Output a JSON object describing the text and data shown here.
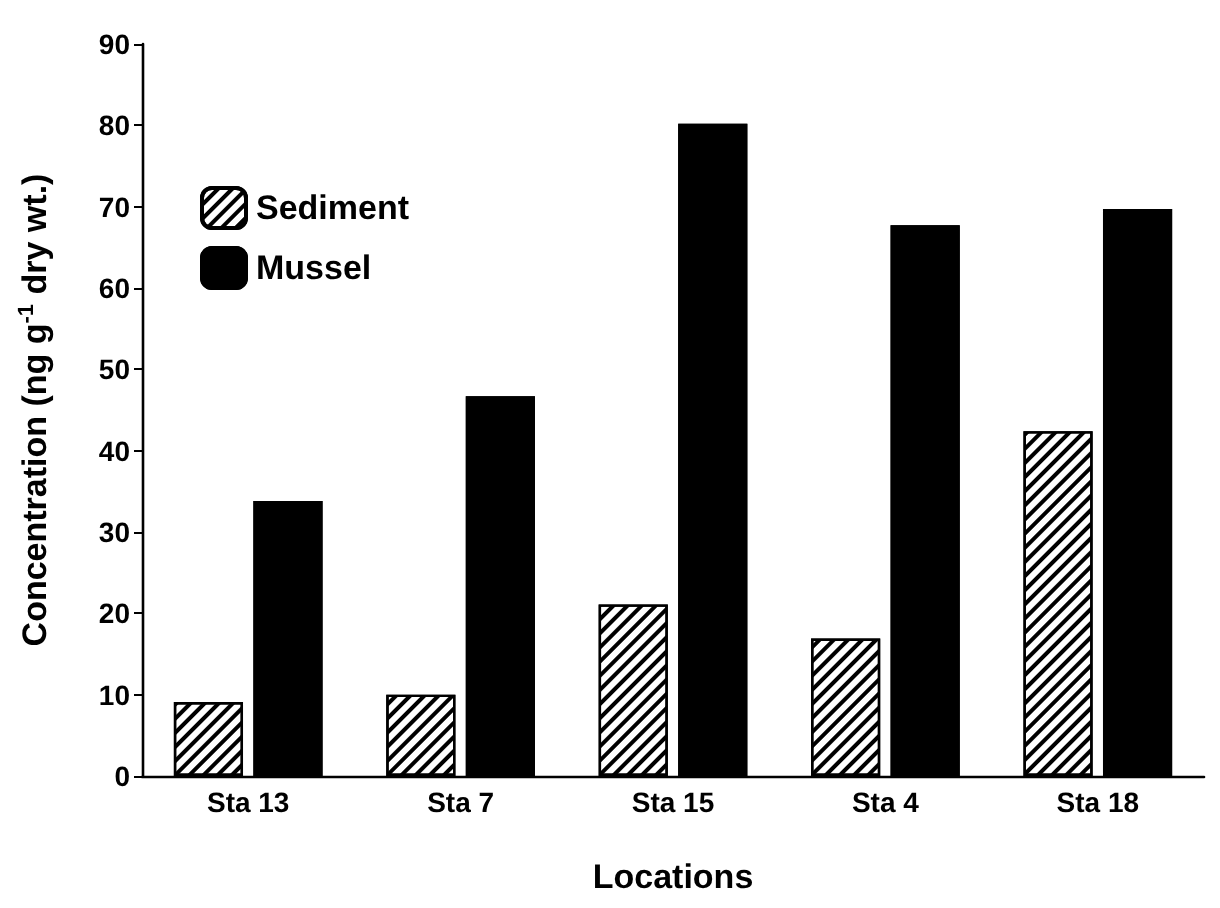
{
  "chart_data": {
    "type": "bar",
    "xlabel": "Locations",
    "ylabel": "Concentration (ng g$^{-1}$ dry wt.)",
    "categories": [
      "Sta 13",
      "Sta 7",
      "Sta 15",
      "Sta 4",
      "Sta 18"
    ],
    "series": [
      {
        "name": "Sediment",
        "color": "#ffffff",
        "values": [
          9.1,
          10.0,
          21.1,
          16.9,
          42.4
        ]
      },
      {
        "name": "Mussel",
        "color": "#000000",
        "values": [
          33.8,
          46.7,
          80.2,
          67.7,
          69.7
        ]
      }
    ],
    "ylim": [
      0,
      90
    ],
    "yticks": [
      0,
      10,
      20,
      30,
      40,
      50,
      60,
      70,
      80,
      90
    ],
    "grid": false,
    "legend": "top left"
  }
}
